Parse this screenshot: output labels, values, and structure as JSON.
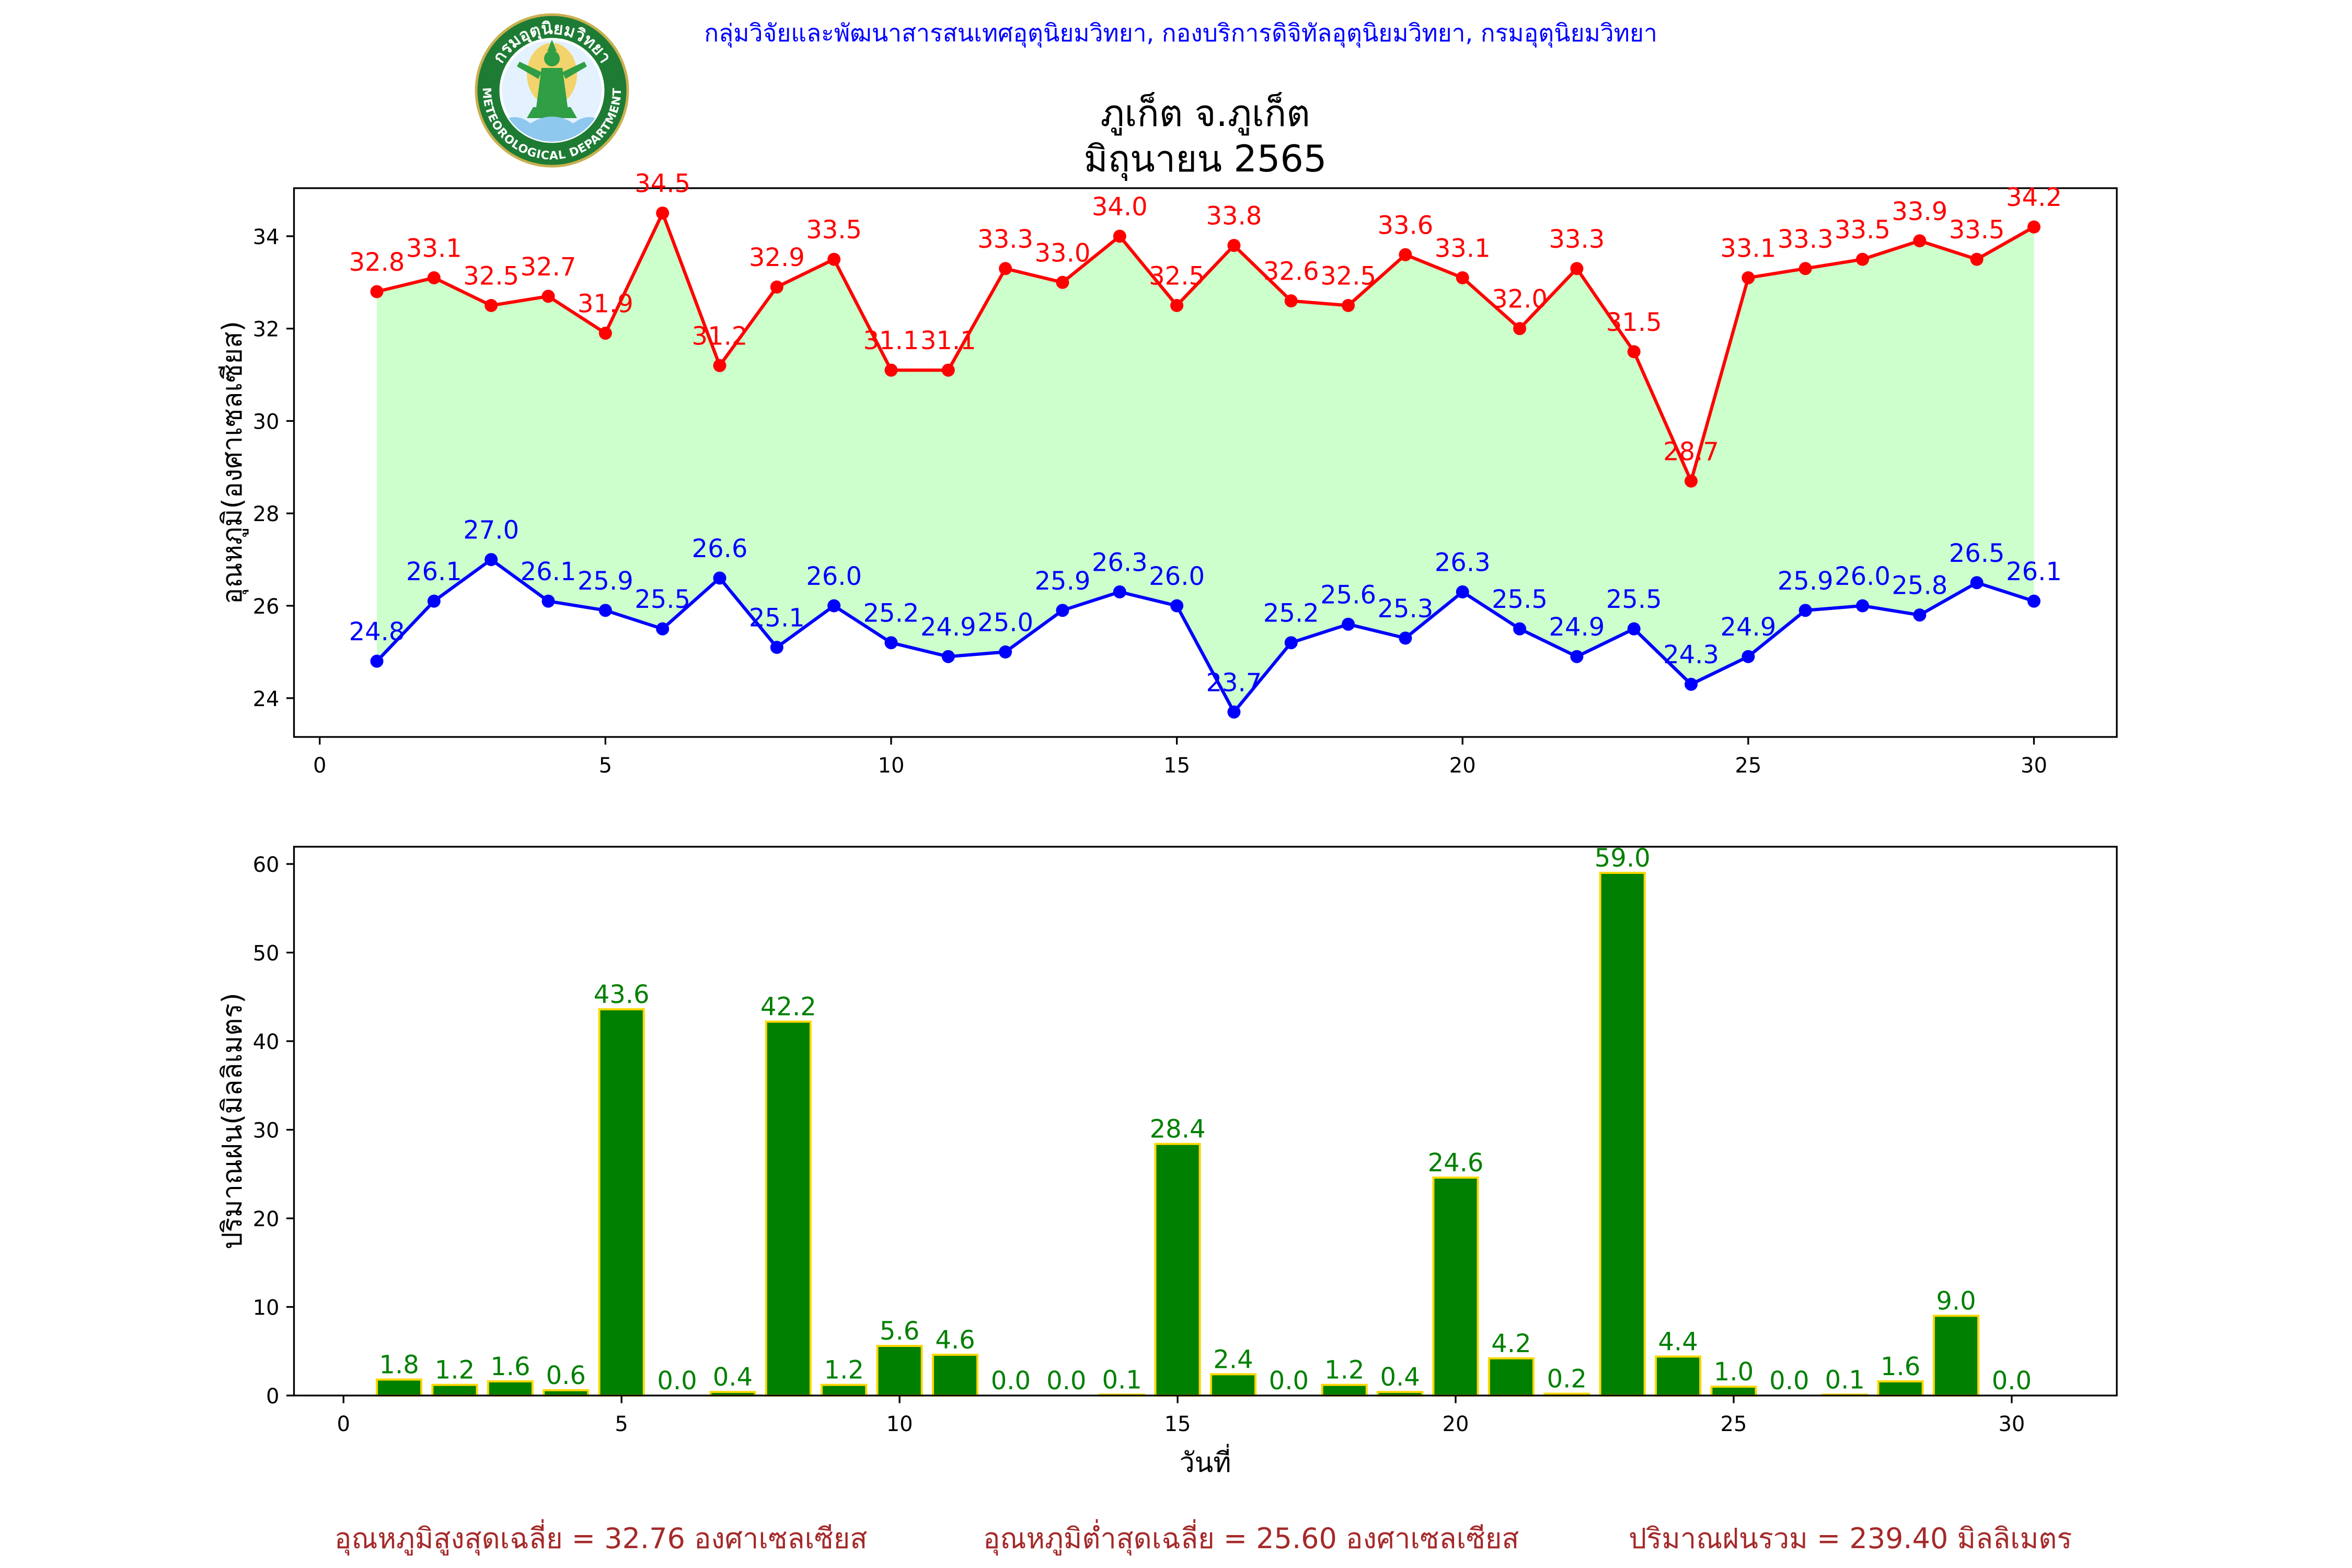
{
  "header": {
    "text": "กลุ่มวิจัยและพัฒนาสารสนเทศอุตุนิยมวิทยา, กองบริการดิจิทัลอุตุนิยมวิทยา, กรมอุตุนิยมวิทยา",
    "color": "#0000ff"
  },
  "logo": {
    "top_text": "กรมอุตุนิยมวิทยา",
    "bottom_text": "METEOROLOGICAL DEPARTMENT"
  },
  "chart_data": [
    {
      "type": "line",
      "title": [
        "ภูเก็ต จ.ภูเก็ต",
        "มิถุนายน 2565"
      ],
      "ylabel": "อุณหภูมิ(องศาเซลเซียส)",
      "x": [
        1,
        2,
        3,
        4,
        5,
        6,
        7,
        8,
        9,
        10,
        11,
        12,
        13,
        14,
        15,
        16,
        17,
        18,
        19,
        20,
        21,
        22,
        23,
        24,
        25,
        26,
        27,
        28,
        29,
        30
      ],
      "xticks": [
        0,
        5,
        10,
        15,
        20,
        25,
        30
      ],
      "yticks": [
        24,
        26,
        28,
        30,
        32,
        34
      ],
      "xlim": [
        -0.45,
        31.45
      ],
      "ylim": [
        23.16,
        35.04
      ],
      "grid": false,
      "fill_between_color": "#ccffcc",
      "series": [
        {
          "color": "#ff0000",
          "values": [
            32.8,
            33.1,
            32.5,
            32.7,
            31.9,
            34.5,
            31.2,
            32.9,
            33.5,
            31.1,
            31.1,
            33.3,
            33.0,
            34.0,
            32.5,
            33.8,
            32.6,
            32.5,
            33.6,
            33.1,
            32.0,
            33.3,
            31.5,
            28.7,
            33.1,
            33.3,
            33.5,
            33.9,
            33.5,
            34.2
          ],
          "labels": [
            "32.8",
            "33.1",
            "32.5",
            "32.7",
            "31.9",
            "34.5",
            "31.2",
            "32.9",
            "33.5",
            "31.1",
            "31.1",
            "33.3",
            "33.0",
            "34.0",
            "32.5",
            "33.8",
            "32.6",
            "32.5",
            "33.6",
            "33.1",
            "32.0",
            "33.3",
            "31.5",
            "28.7",
            "33.1",
            "33.3",
            "33.5",
            "33.9",
            "33.5",
            "34.2"
          ]
        },
        {
          "color": "#0000ff",
          "values": [
            24.8,
            26.1,
            27.0,
            26.1,
            25.9,
            25.5,
            26.6,
            25.1,
            26.0,
            25.2,
            24.9,
            25.0,
            25.9,
            26.3,
            26.0,
            23.7,
            25.2,
            25.6,
            25.3,
            26.3,
            25.5,
            24.9,
            25.5,
            24.3,
            24.9,
            25.9,
            26.0,
            25.8,
            26.5,
            26.1
          ],
          "labels": [
            "24.8",
            "26.1",
            "27.0",
            "26.1",
            "25.9",
            "25.5",
            "26.6",
            "25.1",
            "26.0",
            "25.2",
            "24.9",
            "25.0",
            "25.9",
            "26.3",
            "26.0",
            "23.7",
            "25.2",
            "25.6",
            "25.3",
            "26.3",
            "25.5",
            "24.9",
            "25.5",
            "24.3",
            "24.9",
            "25.9",
            "26.0",
            "25.8",
            "26.5",
            "26.1"
          ]
        }
      ]
    },
    {
      "type": "bar",
      "xlabel": "วันที่",
      "ylabel": "ปริมาณฝน(มิลลิเมตร)",
      "x": [
        1,
        2,
        3,
        4,
        5,
        6,
        7,
        8,
        9,
        10,
        11,
        12,
        13,
        14,
        15,
        16,
        17,
        18,
        19,
        20,
        21,
        22,
        23,
        24,
        25,
        26,
        27,
        28,
        29,
        30
      ],
      "values": [
        1.8,
        1.2,
        1.6,
        0.6,
        43.6,
        0.0,
        0.4,
        42.2,
        1.2,
        5.6,
        4.6,
        0.0,
        0.0,
        0.1,
        28.4,
        2.4,
        0.0,
        1.2,
        0.4,
        24.6,
        4.2,
        0.2,
        59.0,
        4.4,
        1.0,
        0.0,
        0.1,
        1.6,
        9.0,
        0.0
      ],
      "labels": [
        "1.8",
        "1.2",
        "1.6",
        "0.6",
        "43.6",
        "0.0",
        "0.4",
        "42.2",
        "1.2",
        "5.6",
        "4.6",
        "0.0",
        "0.0",
        "0.1",
        "28.4",
        "2.4",
        "0.0",
        "1.2",
        "0.4",
        "24.6",
        "4.2",
        "0.2",
        "59.0",
        "4.4",
        "1.0",
        "0.0",
        "0.1",
        "1.6",
        "9.0",
        "0.0"
      ],
      "xticks": [
        0,
        5,
        10,
        15,
        20,
        25,
        30
      ],
      "yticks": [
        0,
        10,
        20,
        30,
        40,
        50,
        60
      ],
      "xlim": [
        -0.89,
        31.89
      ],
      "ylim": [
        0,
        61.95
      ],
      "grid": false,
      "bar_color": "#008000",
      "edge_color": "#ffd700",
      "label_color": "#008000"
    }
  ],
  "footer": {
    "avg_max_temp": "อุณหภูมิสูงสุดเฉลี่ย = 32.76 องศาเซลเซียส",
    "avg_min_temp": "อุณหภูมิต่ำสุดเฉลี่ย = 25.60 องศาเซลเซียส",
    "total_rain": "ปริมาณฝนรวม = 239.40 มิลลิเมตร",
    "color": "#a52a2a"
  }
}
